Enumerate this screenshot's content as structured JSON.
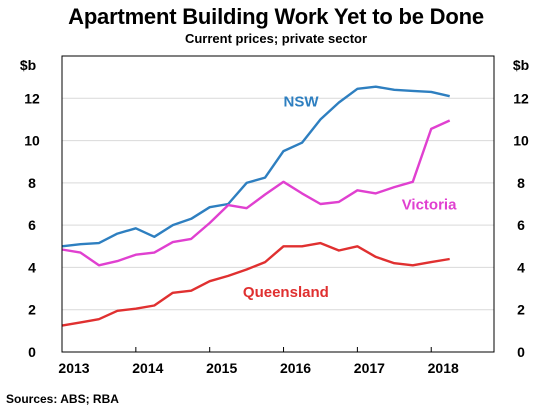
{
  "chart_data": {
    "type": "line",
    "title": "Apartment Building Work Yet to be Done",
    "subtitle": "Current prices; private sector",
    "source": "Sources: ABS; RBA",
    "ylabel_left": "$b",
    "ylabel_right": "$b",
    "ylim": [
      0,
      14
    ],
    "yticks": [
      0,
      2,
      4,
      6,
      8,
      10,
      12
    ],
    "xlim": [
      2013.0,
      2018.85
    ],
    "xticks": [
      2013,
      2014,
      2015,
      2016,
      2017,
      2018
    ],
    "grid": true,
    "series": [
      {
        "name": "NSW",
        "color": "#2e7fc0",
        "x": [
          2013.0,
          2013.25,
          2013.5,
          2013.75,
          2014.0,
          2014.25,
          2014.5,
          2014.75,
          2015.0,
          2015.25,
          2015.5,
          2015.75,
          2016.0,
          2016.25,
          2016.5,
          2016.75,
          2017.0,
          2017.25,
          2017.5,
          2017.75,
          2018.0,
          2018.25
        ],
        "y": [
          5.0,
          5.1,
          5.15,
          5.6,
          5.85,
          5.45,
          6.0,
          6.3,
          6.85,
          7.0,
          8.0,
          8.25,
          9.5,
          9.9,
          11.0,
          11.8,
          12.45,
          12.55,
          12.4,
          12.35,
          12.3,
          12.1
        ]
      },
      {
        "name": "Victoria",
        "color": "#e040d0",
        "x": [
          2013.0,
          2013.25,
          2013.5,
          2013.75,
          2014.0,
          2014.25,
          2014.5,
          2014.75,
          2015.0,
          2015.25,
          2015.5,
          2015.75,
          2016.0,
          2016.25,
          2016.5,
          2016.75,
          2017.0,
          2017.25,
          2017.5,
          2017.75,
          2018.0,
          2018.25
        ],
        "y": [
          4.85,
          4.7,
          4.1,
          4.3,
          4.6,
          4.7,
          5.2,
          5.35,
          6.1,
          6.95,
          6.8,
          7.45,
          8.05,
          7.5,
          7.0,
          7.1,
          7.65,
          7.5,
          7.8,
          8.05,
          10.55,
          10.95
        ]
      },
      {
        "name": "Queensland",
        "color": "#e03030",
        "x": [
          2013.0,
          2013.25,
          2013.5,
          2013.75,
          2014.0,
          2014.25,
          2014.5,
          2014.75,
          2015.0,
          2015.25,
          2015.5,
          2015.75,
          2016.0,
          2016.25,
          2016.5,
          2016.75,
          2017.0,
          2017.25,
          2017.5,
          2017.75,
          2018.0,
          2018.25
        ],
        "y": [
          1.25,
          1.4,
          1.55,
          1.95,
          2.05,
          2.2,
          2.8,
          2.9,
          3.35,
          3.6,
          3.9,
          4.25,
          5.0,
          5.0,
          5.15,
          4.8,
          5.0,
          4.5,
          4.2,
          4.1,
          4.25,
          4.4
        ]
      }
    ]
  }
}
